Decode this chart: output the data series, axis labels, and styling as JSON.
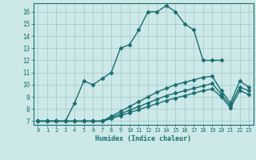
{
  "xlabel": "Humidex (Indice chaleur)",
  "background_color": "#cce8e8",
  "grid_color": "#aacccc",
  "line_color": "#1a6e6e",
  "xlim": [
    -0.5,
    23.5
  ],
  "ylim": [
    6.7,
    16.7
  ],
  "yticks": [
    7,
    8,
    9,
    10,
    11,
    12,
    13,
    14,
    15,
    16
  ],
  "xticks": [
    0,
    1,
    2,
    3,
    4,
    5,
    6,
    7,
    8,
    9,
    10,
    11,
    12,
    13,
    14,
    15,
    16,
    17,
    18,
    19,
    20,
    21,
    22,
    23
  ],
  "lines": [
    {
      "x": [
        0,
        1,
        2,
        3,
        4,
        5,
        6,
        7,
        8,
        9,
        10,
        11,
        12,
        13,
        14,
        15,
        16,
        17,
        18,
        19,
        20
      ],
      "y": [
        7,
        7,
        7,
        7,
        8.5,
        10.3,
        10.0,
        10.5,
        11.0,
        13.0,
        13.3,
        14.5,
        16.0,
        16.0,
        16.5,
        16.0,
        15.0,
        14.5,
        12.0,
        12.0,
        12.0
      ]
    },
    {
      "x": [
        0,
        1,
        2,
        3,
        4,
        5,
        6,
        7,
        8,
        9,
        10,
        11,
        12,
        13,
        14,
        15,
        16,
        17,
        18,
        19,
        20,
        21,
        22,
        23
      ],
      "y": [
        7,
        7,
        7,
        7,
        7,
        7,
        7,
        7,
        7.4,
        7.8,
        8.2,
        8.6,
        9.0,
        9.4,
        9.7,
        10.0,
        10.2,
        10.4,
        10.6,
        10.7,
        9.5,
        8.5,
        10.3,
        9.8
      ]
    },
    {
      "x": [
        0,
        1,
        2,
        3,
        4,
        5,
        6,
        7,
        8,
        9,
        10,
        11,
        12,
        13,
        14,
        15,
        16,
        17,
        18,
        19,
        20,
        21,
        22,
        23
      ],
      "y": [
        7,
        7,
        7,
        7,
        7,
        7,
        7,
        7,
        7.3,
        7.6,
        7.9,
        8.2,
        8.5,
        8.8,
        9.1,
        9.3,
        9.5,
        9.7,
        9.9,
        10.1,
        9.2,
        8.3,
        9.8,
        9.5
      ]
    },
    {
      "x": [
        0,
        1,
        2,
        3,
        4,
        5,
        6,
        7,
        8,
        9,
        10,
        11,
        12,
        13,
        14,
        15,
        16,
        17,
        18,
        19,
        20,
        21,
        22,
        23
      ],
      "y": [
        7,
        7,
        7,
        7,
        7,
        7,
        7,
        7,
        7.2,
        7.45,
        7.7,
        7.95,
        8.2,
        8.45,
        8.7,
        8.9,
        9.1,
        9.3,
        9.5,
        9.65,
        9.0,
        8.1,
        9.5,
        9.2
      ]
    }
  ]
}
